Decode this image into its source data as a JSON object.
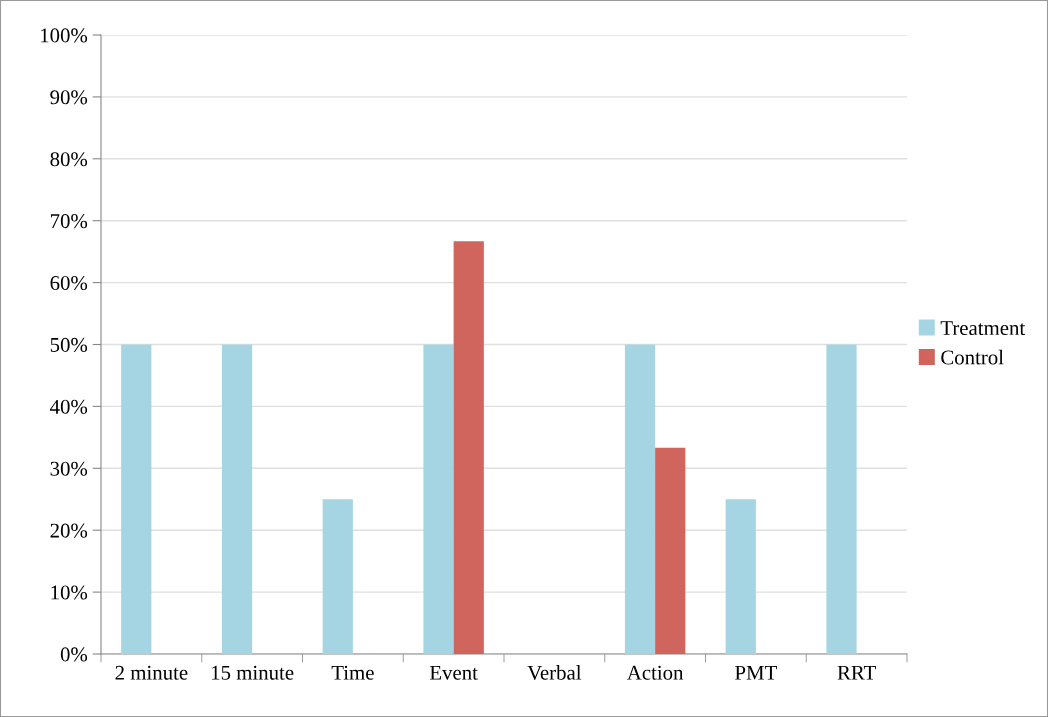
{
  "chart_data": {
    "type": "bar",
    "categories": [
      "2 minute",
      "15 minute",
      "Time",
      "Event",
      "Verbal",
      "Action",
      "PMT",
      "RRT"
    ],
    "series": [
      {
        "name": "Treatment",
        "color": "#a5d5e2",
        "values": [
          50,
          50,
          25,
          50,
          0,
          50,
          25,
          50
        ]
      },
      {
        "name": "Control",
        "color": "#cf655d",
        "values": [
          0,
          0,
          0,
          66.7,
          0,
          33.3,
          0,
          0
        ]
      }
    ],
    "ylim": [
      0,
      100
    ],
    "yticks": [
      {
        "value": 0,
        "label": "0%"
      },
      {
        "value": 10,
        "label": "10%"
      },
      {
        "value": 20,
        "label": "20%"
      },
      {
        "value": 30,
        "label": "30%"
      },
      {
        "value": 40,
        "label": "40%"
      },
      {
        "value": 50,
        "label": "50%"
      },
      {
        "value": 60,
        "label": "60%"
      },
      {
        "value": 70,
        "label": "70%"
      },
      {
        "value": 80,
        "label": "80%"
      },
      {
        "value": 90,
        "label": "90%"
      },
      {
        "value": 100,
        "label": "100%"
      }
    ],
    "grid": "y",
    "legend": "right"
  }
}
